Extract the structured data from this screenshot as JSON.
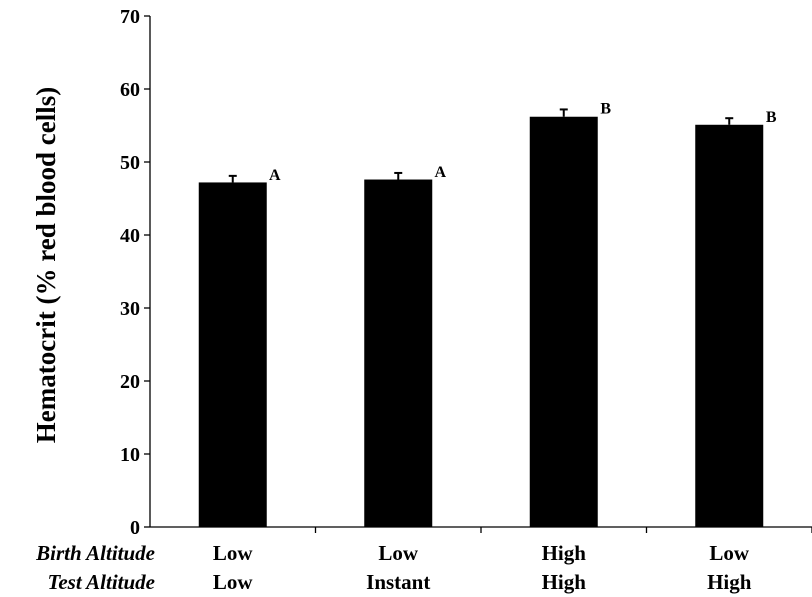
{
  "chart_data": {
    "type": "bar",
    "ylabel": "Hematocrit (% red blood cells)",
    "xlabel": "",
    "ylim": [
      0,
      70
    ],
    "yticks": [
      0,
      10,
      20,
      30,
      40,
      50,
      60,
      70
    ],
    "grid": false,
    "legend": "none",
    "categories": [
      {
        "birth": "Low",
        "test": "Low"
      },
      {
        "birth": "Low",
        "test": "Instant"
      },
      {
        "birth": "High",
        "test": "High"
      },
      {
        "birth": "Low",
        "test": "High"
      }
    ],
    "row_labels": {
      "birth": "Birth Altitude",
      "test": "Test Altitude"
    },
    "values": [
      47.2,
      47.6,
      56.2,
      55.1
    ],
    "errors": [
      0.9,
      0.9,
      1.0,
      0.9
    ],
    "significance": [
      "A",
      "A",
      "B",
      "B"
    ],
    "colors": {
      "bar": "#000000",
      "axis": "#000000"
    }
  }
}
